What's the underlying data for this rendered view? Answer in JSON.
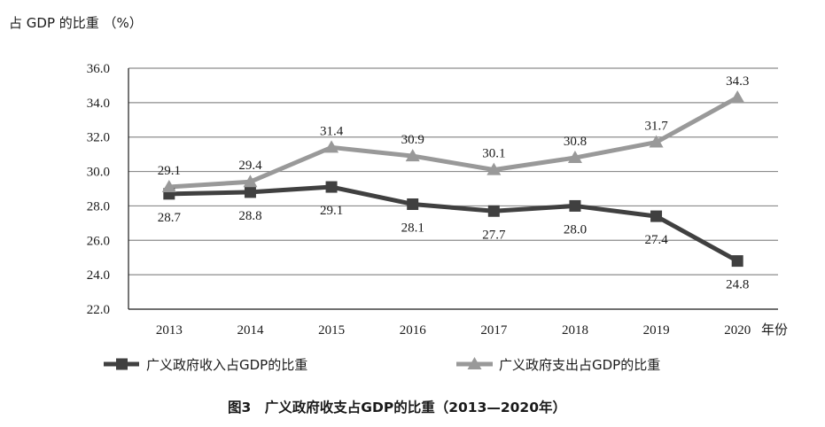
{
  "chart_data": {
    "type": "line",
    "title": "图3　广义政府收支占GDP的比重（2013—2020年）",
    "ylabel": "占 GDP 的比重 （%）",
    "xlabel": "年份",
    "categories": [
      "2013",
      "2014",
      "2015",
      "2016",
      "2017",
      "2018",
      "2019",
      "2020"
    ],
    "ylim": [
      22.0,
      36.0
    ],
    "yticks": [
      "22.0",
      "24.0",
      "26.0",
      "28.0",
      "30.0",
      "32.0",
      "34.0",
      "36.0"
    ],
    "grid": true,
    "legend_position": "bottom",
    "series": [
      {
        "name": "广义政府收入占GDP的比重",
        "marker": "square",
        "color": "#404040",
        "values": [
          28.7,
          28.8,
          29.1,
          28.1,
          27.7,
          28.0,
          27.4,
          24.8
        ],
        "labels": [
          "28.7",
          "28.8",
          "29.1",
          "28.1",
          "27.7",
          "28.0",
          "27.4",
          "24.8"
        ]
      },
      {
        "name": "广义政府支出占GDP的比重",
        "marker": "triangle",
        "color": "#999999",
        "values": [
          29.1,
          29.4,
          31.4,
          30.9,
          30.1,
          30.8,
          31.7,
          34.3
        ],
        "labels": [
          "29.1",
          "29.4",
          "31.4",
          "30.9",
          "30.1",
          "30.8",
          "31.7",
          "34.3"
        ]
      }
    ]
  }
}
